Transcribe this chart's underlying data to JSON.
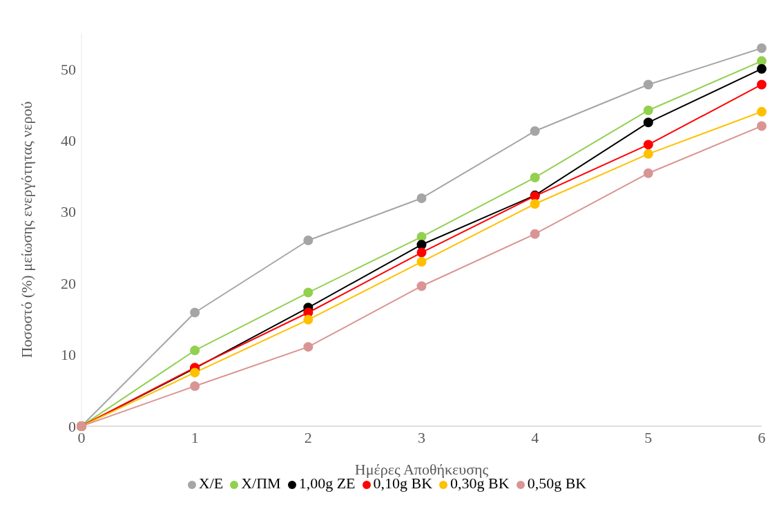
{
  "chart_data": {
    "type": "line",
    "xlabel": "Ημέρες Αποθήκευσης",
    "ylabel": "Ποσοστό (%) μείωσης ενεργότητας νερού",
    "x": [
      0,
      1,
      2,
      3,
      4,
      5,
      6
    ],
    "series": [
      {
        "name": "Χ/Ε",
        "color": "#a5a5a5",
        "values": [
          0,
          15.9,
          26,
          31.9,
          41.3,
          47.8,
          52.9
        ]
      },
      {
        "name": "Χ/ΠΜ",
        "color": "#92d050",
        "values": [
          0,
          10.6,
          18.7,
          26.5,
          34.8,
          44.2,
          51.1
        ]
      },
      {
        "name": "1,00g ZE",
        "color": "#000000",
        "values": [
          0,
          8.1,
          16.6,
          25.4,
          32.3,
          42.5,
          50
        ]
      },
      {
        "name": "0,10g BK",
        "color": "#ff0000",
        "values": [
          0,
          8.2,
          15.9,
          24.3,
          32.2,
          39.4,
          47.8
        ]
      },
      {
        "name": "0,30g BK",
        "color": "#ffc000",
        "values": [
          0,
          7.5,
          14.9,
          23,
          31.1,
          38.1,
          44
        ]
      },
      {
        "name": "0,50g BK",
        "color": "#d99594",
        "values": [
          0,
          5.6,
          11.1,
          19.6,
          26.9,
          35.4,
          42
        ]
      }
    ],
    "xlim": [
      0,
      6
    ],
    "xticks": [
      0,
      1,
      2,
      3,
      4,
      5,
      6
    ],
    "yticks": [
      0,
      10,
      20,
      30,
      40,
      50
    ],
    "ylim": [
      0,
      55
    ],
    "grid": false,
    "legend": "bottom",
    "marker": "circle",
    "line_style": "solid"
  }
}
